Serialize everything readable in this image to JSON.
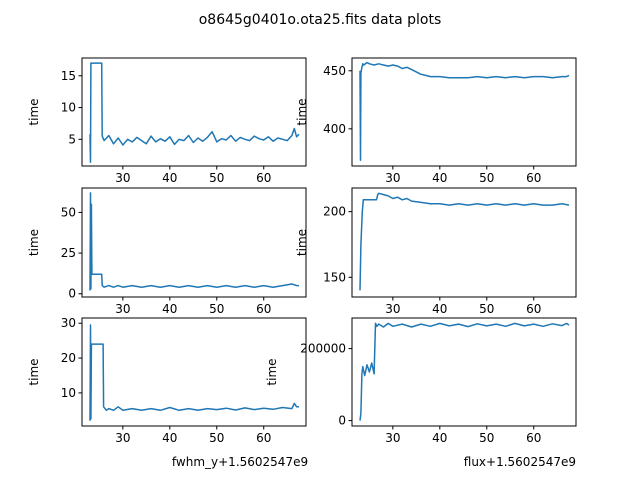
{
  "figure": {
    "title": "o8645g0401o.ota25.fits data plots"
  },
  "chart_data": [
    {
      "type": "line",
      "panel": "top-left",
      "ylabel": "time",
      "xlabel": "",
      "xlim": [
        21.3,
        69.0
      ],
      "ylim": [
        0.8,
        17.8
      ],
      "xticks": [
        30,
        40,
        50,
        60
      ],
      "yticks": [
        5,
        10,
        15
      ],
      "series": [
        {
          "color": "#1f77b4",
          "x": [
            23.0,
            23.1,
            23.2,
            23.3,
            23.4,
            25.5,
            25.6,
            26.0,
            27.0,
            28.0,
            29.0,
            30.0,
            31.0,
            32.0,
            33.0,
            34.0,
            35.0,
            36.0,
            37.0,
            38.0,
            39.0,
            40.0,
            41.0,
            42.0,
            43.0,
            44.0,
            45.0,
            46.0,
            47.0,
            48.0,
            49.0,
            50.0,
            51.0,
            52.0,
            53.0,
            54.0,
            55.0,
            56.0,
            57.0,
            58.0,
            59.0,
            60.0,
            61.0,
            62.0,
            63.0,
            64.0,
            65.0,
            66.0,
            66.5,
            67.0,
            67.5
          ],
          "y": [
            5.8,
            1.4,
            17.0,
            17.0,
            17.0,
            17.0,
            5.5,
            4.8,
            5.6,
            4.3,
            5.2,
            4.1,
            5.0,
            4.6,
            5.3,
            4.8,
            4.3,
            5.5,
            4.6,
            5.1,
            4.7,
            5.4,
            4.2,
            5.0,
            4.8,
            5.6,
            4.5,
            5.2,
            4.7,
            5.3,
            6.2,
            4.6,
            5.1,
            4.9,
            5.6,
            4.7,
            5.3,
            5.0,
            4.8,
            5.5,
            5.1,
            4.9,
            5.4,
            4.7,
            5.2,
            5.0,
            4.8,
            5.6,
            6.7,
            5.4,
            5.8
          ]
        }
      ]
    },
    {
      "type": "line",
      "panel": "top-right",
      "ylabel": "time",
      "xlabel": "",
      "xlim": [
        21.3,
        69.0
      ],
      "ylim": [
        368,
        461
      ],
      "xticks": [
        30,
        40,
        50,
        60
      ],
      "yticks": [
        400,
        450
      ],
      "series": [
        {
          "color": "#1f77b4",
          "x": [
            23.0,
            23.1,
            23.2,
            23.4,
            23.6,
            23.8,
            24.5,
            25.0,
            26.0,
            27.0,
            28.0,
            29.0,
            30.0,
            31.0,
            32.0,
            33.0,
            34.0,
            35.0,
            36.0,
            37.0,
            38.0,
            40.0,
            42.0,
            44.0,
            46.0,
            48.0,
            50.0,
            52.0,
            54.0,
            56.0,
            58.0,
            60.0,
            62.0,
            64.0,
            66.0,
            67.0,
            67.5
          ],
          "y": [
            450,
            373,
            448,
            453,
            456,
            455,
            457,
            456,
            455,
            456,
            455,
            454,
            455,
            454,
            452,
            453,
            451,
            449,
            447,
            446,
            445,
            445,
            444,
            444,
            444,
            445,
            444,
            445,
            444,
            445,
            444,
            445,
            445,
            444,
            445,
            445,
            446
          ]
        }
      ]
    },
    {
      "type": "line",
      "panel": "middle-left",
      "ylabel": "time",
      "xlabel": "",
      "xlim": [
        21.3,
        69.0
      ],
      "ylim": [
        -2,
        65
      ],
      "xticks": [
        30,
        40,
        50,
        60
      ],
      "yticks": [
        0,
        25,
        50
      ],
      "series": [
        {
          "color": "#1f77b4",
          "x": [
            23.0,
            23.1,
            23.2,
            23.3,
            23.4,
            23.5,
            25.5,
            25.6,
            26.0,
            27.0,
            28.0,
            29.0,
            30.0,
            32.0,
            34.0,
            36.0,
            38.0,
            40.0,
            42.0,
            44.0,
            46.0,
            48.0,
            50.0,
            52.0,
            54.0,
            56.0,
            58.0,
            60.0,
            62.0,
            64.0,
            66.0,
            67.0,
            67.5
          ],
          "y": [
            2,
            62,
            3,
            55,
            12,
            12,
            12,
            5,
            4,
            5,
            4,
            5,
            4,
            5,
            4,
            5,
            4,
            5,
            4,
            5,
            4,
            5,
            4,
            5,
            4,
            5,
            4,
            5,
            4,
            5,
            6,
            5,
            5
          ]
        }
      ]
    },
    {
      "type": "line",
      "panel": "middle-right",
      "ylabel": "time",
      "xlabel": "",
      "xlim": [
        21.3,
        69.0
      ],
      "ylim": [
        135,
        218
      ],
      "xticks": [
        30,
        40,
        50,
        60
      ],
      "yticks": [
        150,
        200
      ],
      "series": [
        {
          "color": "#1f77b4",
          "x": [
            23.0,
            23.2,
            23.5,
            23.7,
            26.5,
            26.8,
            27.0,
            28.0,
            29.0,
            30.0,
            31.0,
            32.0,
            33.0,
            34.0,
            36.0,
            38.0,
            40.0,
            42.0,
            44.0,
            46.0,
            48.0,
            50.0,
            52.0,
            54.0,
            56.0,
            58.0,
            60.0,
            62.0,
            64.0,
            66.0,
            67.5
          ],
          "y": [
            140,
            175,
            200,
            209,
            209,
            213,
            214,
            213,
            212,
            210,
            211,
            209,
            210,
            208,
            207,
            206,
            206,
            205,
            206,
            205,
            206,
            205,
            206,
            205,
            206,
            205,
            206,
            205,
            205,
            206,
            205
          ]
        }
      ]
    },
    {
      "type": "line",
      "panel": "bottom-left",
      "ylabel": "time",
      "xlabel": "fwhm_y",
      "xlim": [
        21.3,
        69.0
      ],
      "ylim": [
        0.5,
        31.5
      ],
      "xticks": [
        30,
        40,
        50,
        60
      ],
      "yticks": [
        10,
        20,
        30
      ],
      "series": [
        {
          "color": "#1f77b4",
          "x": [
            23.0,
            23.1,
            23.2,
            23.3,
            23.4,
            25.8,
            25.9,
            26.5,
            27.0,
            28.0,
            29.0,
            30.0,
            32.0,
            34.0,
            36.0,
            38.0,
            40.0,
            42.0,
            44.0,
            46.0,
            48.0,
            50.0,
            52.0,
            54.0,
            56.0,
            58.0,
            60.0,
            62.0,
            64.0,
            66.0,
            66.5,
            67.0,
            67.5
          ],
          "y": [
            2,
            29.5,
            2.5,
            24,
            24,
            24,
            6,
            5,
            5.5,
            5,
            6,
            5,
            5.5,
            5,
            5.5,
            5,
            5.8,
            5,
            5.5,
            5,
            5.5,
            5.2,
            5.6,
            5.1,
            5.7,
            5.2,
            5.6,
            5.3,
            5.8,
            5.5,
            7,
            6,
            6
          ]
        }
      ]
    },
    {
      "type": "line",
      "panel": "bottom-right",
      "ylabel": "time",
      "xlabel": "flux",
      "xlim": [
        21.3,
        69.0
      ],
      "ylim": [
        -15000,
        285000
      ],
      "xticks": [
        30,
        40,
        50,
        60
      ],
      "yticks": [
        0,
        200000
      ],
      "series": [
        {
          "color": "#1f77b4",
          "x": [
            23.0,
            23.2,
            23.4,
            23.6,
            24.0,
            24.5,
            25.0,
            25.5,
            26.0,
            26.3,
            26.6,
            27.0,
            28.0,
            29.0,
            30.0,
            32.0,
            34.0,
            36.0,
            38.0,
            40.0,
            42.0,
            44.0,
            46.0,
            48.0,
            50.0,
            52.0,
            54.0,
            56.0,
            58.0,
            60.0,
            62.0,
            64.0,
            66.0,
            67.0,
            67.5
          ],
          "y": [
            0,
            20000,
            130000,
            150000,
            125000,
            155000,
            135000,
            160000,
            130000,
            270000,
            262000,
            268000,
            260000,
            270000,
            262000,
            268000,
            260000,
            268000,
            262000,
            270000,
            263000,
            268000,
            261000,
            269000,
            263000,
            268000,
            262000,
            270000,
            263000,
            268000,
            262000,
            269000,
            264000,
            270000,
            265000
          ]
        }
      ]
    }
  ],
  "offset_label": "+1.5602547e9"
}
